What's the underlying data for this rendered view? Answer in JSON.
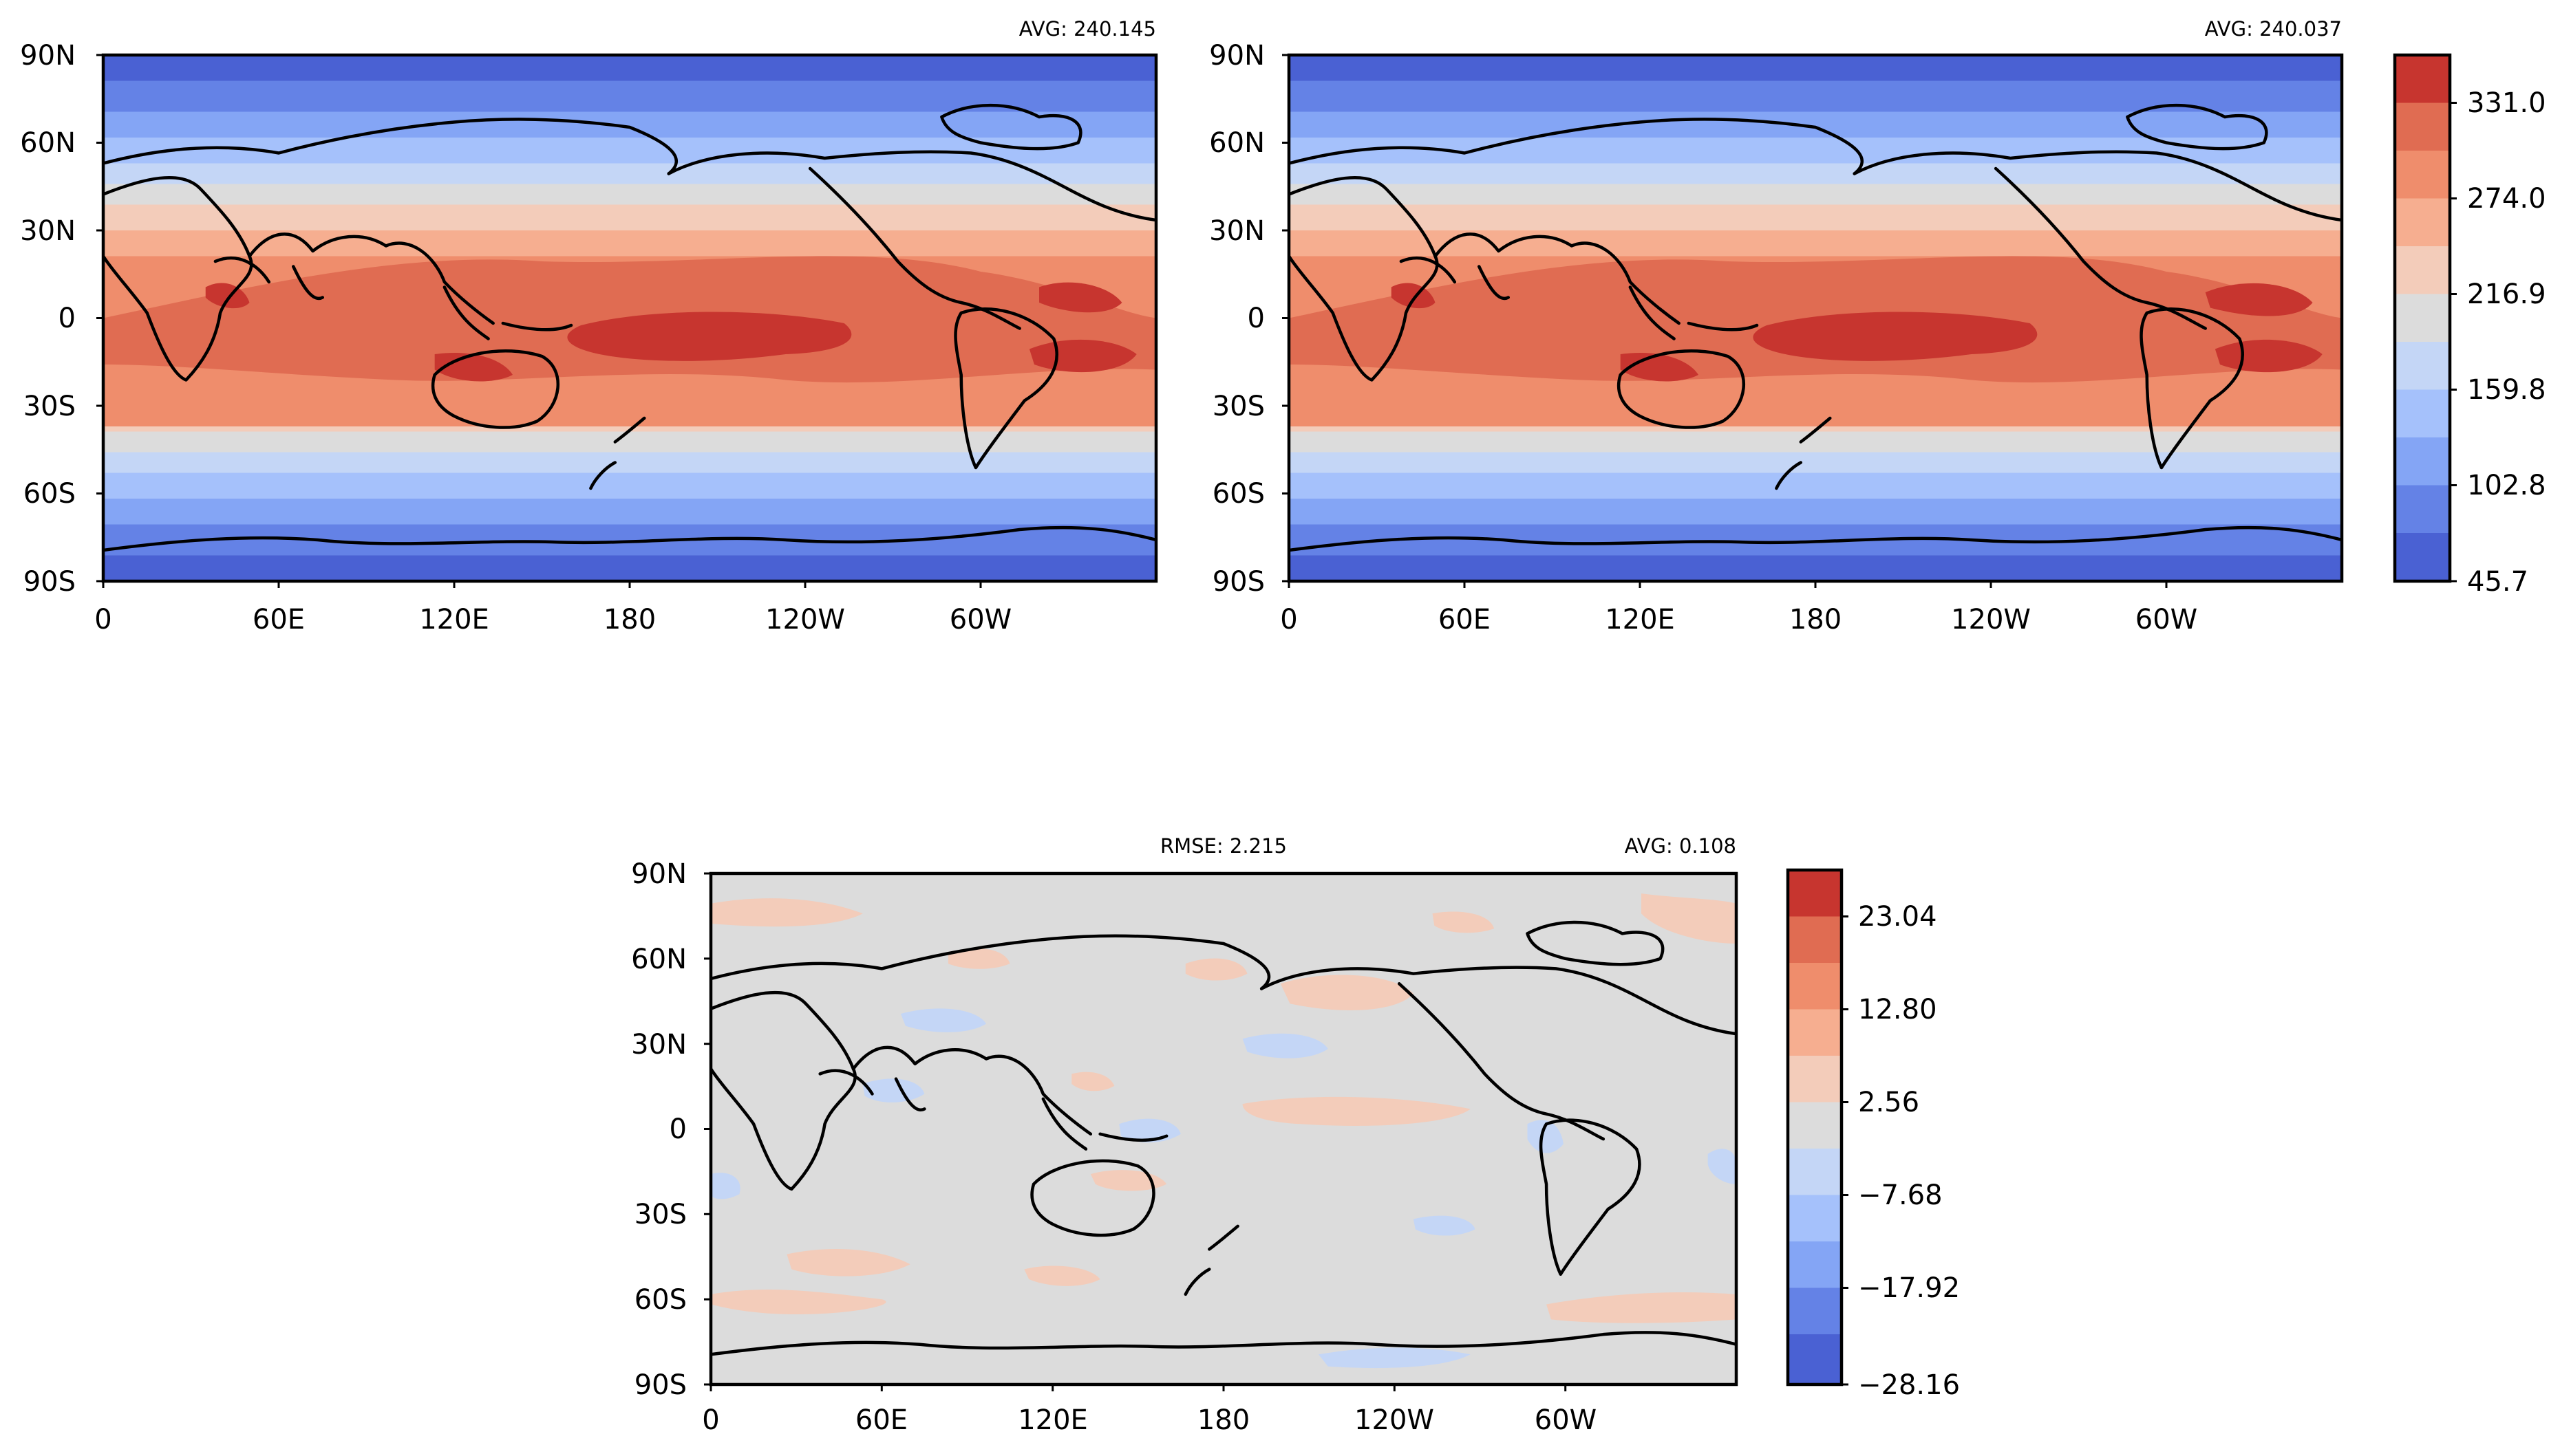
{
  "colors": {
    "levels_11": [
      "#4a61d3",
      "#6482e6",
      "#84a5f5",
      "#a5c1fb",
      "#c4d6f6",
      "#dcdcdc",
      "#f3ccba",
      "#f6ae90",
      "#ef8d6c",
      "#e06c52",
      "#c7352f"
    ],
    "diff_zero_band": "#dcdcdc",
    "frame": "#000000"
  },
  "panels": {
    "top_left": {
      "avg_label": "AVG: 240.145",
      "lat_ticks": [
        "90N",
        "60N",
        "30N",
        "0",
        "30S",
        "60S",
        "90S"
      ],
      "lon_ticks": [
        "0",
        "60E",
        "120E",
        "180",
        "120W",
        "60W"
      ]
    },
    "top_right": {
      "avg_label": "AVG: 240.037",
      "lat_ticks": [
        "90N",
        "60N",
        "30N",
        "0",
        "30S",
        "60S",
        "90S"
      ],
      "lon_ticks": [
        "0",
        "60E",
        "120E",
        "180",
        "120W",
        "60W"
      ]
    },
    "bottom": {
      "rmse_label": "RMSE: 2.215",
      "avg_label": "AVG: 0.108",
      "lat_ticks": [
        "90N",
        "60N",
        "30N",
        "0",
        "30S",
        "60S",
        "90S"
      ],
      "lon_ticks": [
        "0",
        "60E",
        "120E",
        "180",
        "120W",
        "60W"
      ]
    }
  },
  "colorbars": {
    "top": {
      "tick_labels": [
        "331.0",
        "274.0",
        "216.9",
        "159.8",
        "102.8",
        "45.7"
      ]
    },
    "bottom": {
      "tick_labels": [
        "23.04",
        "12.80",
        "2.56",
        "−7.68",
        "−17.92",
        "−28.16"
      ]
    }
  }
}
